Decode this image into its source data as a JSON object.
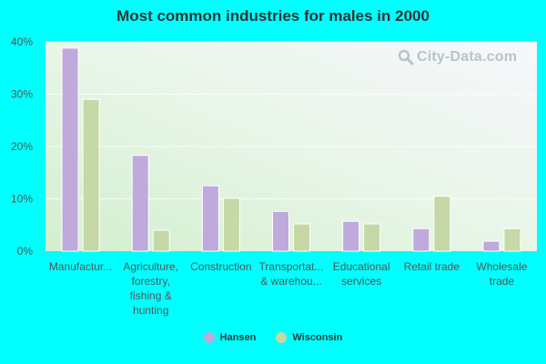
{
  "chart_data": {
    "type": "bar",
    "title": "Most common industries for males in 2000",
    "categories": [
      [
        "Manufactur..."
      ],
      [
        "Agriculture,",
        "forestry,",
        "fishing &",
        "hunting"
      ],
      [
        "Construction"
      ],
      [
        "Transportat...",
        "& warehou..."
      ],
      [
        "Educational",
        "services"
      ],
      [
        "Retail trade"
      ],
      [
        "Wholesale",
        "trade"
      ]
    ],
    "series": [
      {
        "name": "Hansen",
        "color": "#c0a9db",
        "values": [
          38.8,
          18.3,
          12.5,
          7.6,
          5.7,
          4.3,
          1.9
        ]
      },
      {
        "name": "Wisconsin",
        "color": "#c5d8a6",
        "values": [
          29.0,
          4.0,
          10.1,
          5.2,
          5.2,
          10.5,
          4.3
        ]
      }
    ],
    "ylim": [
      0,
      40
    ],
    "yticks": [
      "0%",
      "10%",
      "20%",
      "30%",
      "40%"
    ],
    "ytick_values": [
      0,
      10,
      20,
      30,
      40
    ],
    "grid": true,
    "legend": "bottom"
  },
  "watermark": "City-Data.com"
}
